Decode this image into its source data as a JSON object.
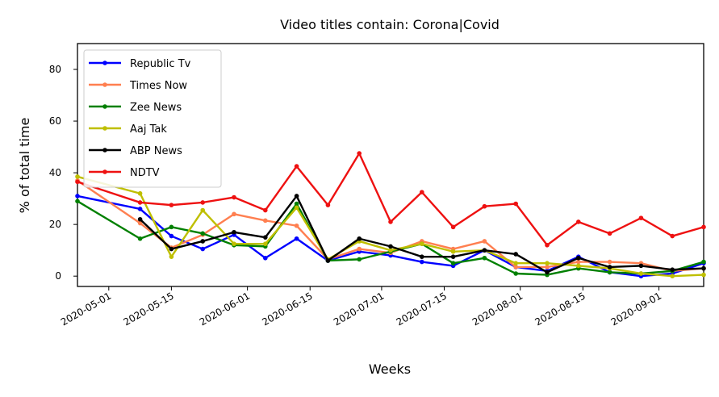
{
  "chart_data": {
    "type": "line",
    "title": "Video titles contain: Corona|Covid",
    "xlabel": "Weeks",
    "ylabel": "% of total time",
    "x": [
      "2020-04-24",
      "2020-05-08",
      "2020-05-15",
      "2020-05-22",
      "2020-05-29",
      "2020-06-05",
      "2020-06-12",
      "2020-06-19",
      "2020-06-26",
      "2020-07-03",
      "2020-07-10",
      "2020-07-17",
      "2020-07-24",
      "2020-07-31",
      "2020-08-07",
      "2020-08-14",
      "2020-08-21",
      "2020-08-28",
      "2020-09-04",
      "2020-09-11"
    ],
    "xlim": [
      "2020-04-24",
      "2020-09-11"
    ],
    "ylim": [
      -4,
      90
    ],
    "x_ticks": [
      "2020-05-01",
      "2020-05-15",
      "2020-06-01",
      "2020-06-15",
      "2020-07-01",
      "2020-07-15",
      "2020-08-01",
      "2020-08-15",
      "2020-09-01"
    ],
    "y_ticks": [
      0,
      20,
      40,
      60,
      80
    ],
    "grid": false,
    "legend_position": "top-left",
    "series": [
      {
        "name": "Republic Tv",
        "color": "#0000ff",
        "values": [
          31,
          26,
          15.5,
          10.5,
          16,
          7,
          14.5,
          6,
          9.5,
          8,
          5.5,
          4,
          10,
          3.5,
          2,
          7.5,
          1.5,
          0,
          1,
          5
        ]
      },
      {
        "name": "Times Now",
        "color": "#ff7f50",
        "values": [
          37,
          20.5,
          11,
          16,
          24,
          21.5,
          19.5,
          6.5,
          10.5,
          9,
          13.5,
          10.5,
          13.5,
          3.5,
          3.5,
          5.5,
          5.5,
          5,
          2,
          3
        ]
      },
      {
        "name": "Zee News",
        "color": "#008000",
        "values": [
          29,
          14.5,
          19,
          16.5,
          12,
          11.5,
          28,
          6,
          6.5,
          9.5,
          12.5,
          5,
          7,
          1,
          0.5,
          3,
          1.5,
          1,
          2,
          5.5
        ]
      },
      {
        "name": "Aaj Tak",
        "color": "#bfbf00",
        "values": [
          38.5,
          32,
          7.5,
          25.5,
          12.5,
          12.5,
          26.5,
          6.5,
          13.5,
          10,
          12.5,
          9.5,
          10,
          5,
          5,
          4,
          3,
          1,
          0,
          0.5
        ]
      },
      {
        "name": "ABP News",
        "color": "#000000",
        "values": [
          null,
          22,
          10.5,
          13.5,
          17,
          15,
          31,
          6,
          14.5,
          11.5,
          7.5,
          7.5,
          10,
          8.5,
          1.5,
          7,
          3.5,
          4,
          2.5,
          3
        ]
      },
      {
        "name": "NDTV",
        "color": "#ee1111",
        "values": [
          36.5,
          28.5,
          27.5,
          28.5,
          30.5,
          25.5,
          42.5,
          27.5,
          47.5,
          21,
          32.5,
          19,
          27,
          28,
          12,
          21,
          16.5,
          22.5,
          15.5,
          19
        ]
      }
    ]
  }
}
